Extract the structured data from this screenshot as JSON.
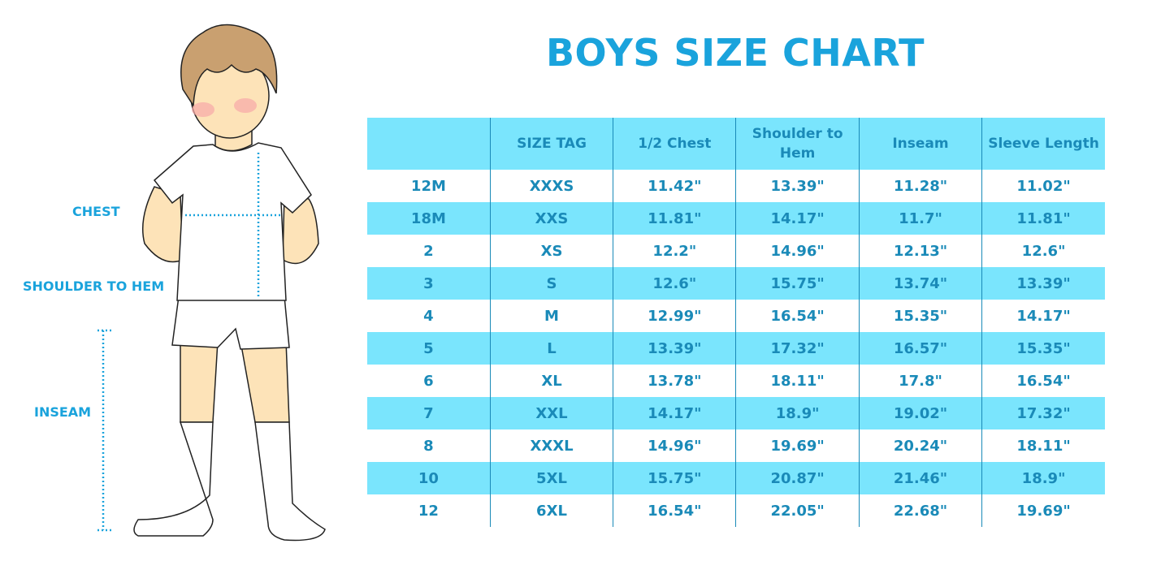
{
  "title": "BOYS SIZE CHART",
  "measure_labels": {
    "chest": "CHEST",
    "shoulder_to_hem": "SHOULDER TO HEM",
    "inseam": "INSEAM"
  },
  "colors": {
    "accent": "#1aa3dc",
    "row_highlight": "#7ae5fd",
    "text": "#1a8ab8"
  },
  "table": {
    "headers": [
      "",
      "SIZE TAG",
      "1/2 Chest",
      "Shoulder to Hem",
      "Inseam",
      "Sleeve Length"
    ],
    "rows": [
      [
        "12M",
        "XXXS",
        "11.42\"",
        "13.39\"",
        "11.28\"",
        "11.02\""
      ],
      [
        "18M",
        "XXS",
        "11.81\"",
        "14.17\"",
        "11.7\"",
        "11.81\""
      ],
      [
        "2",
        "XS",
        "12.2\"",
        "14.96\"",
        "12.13\"",
        "12.6\""
      ],
      [
        "3",
        "S",
        "12.6\"",
        "15.75\"",
        "13.74\"",
        "13.39\""
      ],
      [
        "4",
        "M",
        "12.99\"",
        "16.54\"",
        "15.35\"",
        "14.17\""
      ],
      [
        "5",
        "L",
        "13.39\"",
        "17.32\"",
        "16.57\"",
        "15.35\""
      ],
      [
        "6",
        "XL",
        "13.78\"",
        "18.11\"",
        "17.8\"",
        "16.54\""
      ],
      [
        "7",
        "XXL",
        "14.17\"",
        "18.9\"",
        "19.02\"",
        "17.32\""
      ],
      [
        "8",
        "XXXL",
        "14.96\"",
        "19.69\"",
        "20.24\"",
        "18.11\""
      ],
      [
        "10",
        "5XL",
        "15.75\"",
        "20.87\"",
        "21.46\"",
        "18.9\""
      ],
      [
        "12",
        "6XL",
        "16.54\"",
        "22.05\"",
        "22.68\"",
        "19.69\""
      ]
    ]
  }
}
